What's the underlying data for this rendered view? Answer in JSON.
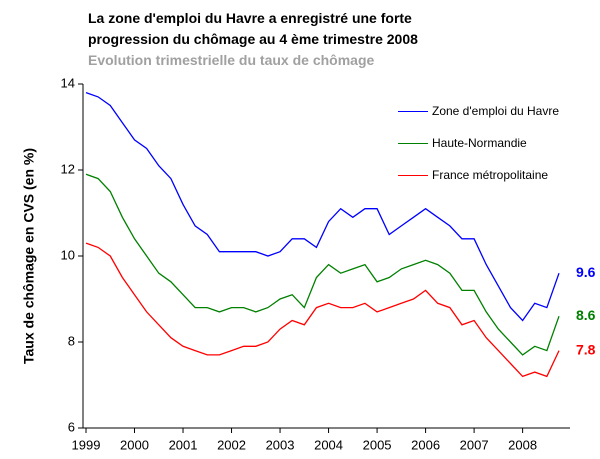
{
  "chart_data": {
    "type": "line",
    "title": "La zone d'emploi du Havre a enregistré une forte progression du chômage au 4 ème trimestre 2008",
    "subtitle": "Evolution trimestrielle du taux de chômage",
    "y_label": "Taux de chômage en CVS (en %)",
    "x": [
      1999,
      1999.25,
      1999.5,
      1999.75,
      2000,
      2000.25,
      2000.5,
      2000.75,
      2001,
      2001.25,
      2001.5,
      2001.75,
      2002,
      2002.25,
      2002.5,
      2002.75,
      2003,
      2003.25,
      2003.5,
      2003.75,
      2004,
      2004.25,
      2004.5,
      2004.75,
      2005,
      2005.25,
      2005.5,
      2005.75,
      2006,
      2006.25,
      2006.5,
      2006.75,
      2007,
      2007.25,
      2007.5,
      2007.75,
      2008,
      2008.25,
      2008.5,
      2008.75
    ],
    "series": [
      {
        "name": "Zone d'emploi du Havre",
        "color": "#0000ff",
        "values": [
          13.8,
          13.7,
          13.5,
          13.1,
          12.7,
          12.5,
          12.1,
          11.8,
          11.2,
          10.7,
          10.5,
          10.1,
          10.1,
          10.1,
          10.1,
          10.0,
          10.1,
          10.4,
          10.4,
          10.2,
          10.8,
          11.1,
          10.9,
          11.1,
          11.1,
          10.5,
          10.7,
          10.9,
          11.1,
          10.9,
          10.7,
          10.4,
          10.4,
          9.8,
          9.3,
          8.8,
          8.5,
          8.9,
          8.8,
          9.6
        ]
      },
      {
        "name": "Haute-Normandie",
        "color": "#008000",
        "values": [
          11.9,
          11.8,
          11.5,
          10.9,
          10.4,
          10.0,
          9.6,
          9.4,
          9.1,
          8.8,
          8.8,
          8.7,
          8.8,
          8.8,
          8.7,
          8.8,
          9.0,
          9.1,
          8.8,
          9.5,
          9.8,
          9.6,
          9.7,
          9.8,
          9.4,
          9.5,
          9.7,
          9.8,
          9.9,
          9.8,
          9.6,
          9.2,
          9.2,
          8.7,
          8.3,
          8.0,
          7.7,
          7.9,
          7.8,
          8.6
        ]
      },
      {
        "name": "France métropolitaine",
        "color": "#ff0000",
        "values": [
          10.3,
          10.2,
          10.0,
          9.5,
          9.1,
          8.7,
          8.4,
          8.1,
          7.9,
          7.8,
          7.7,
          7.7,
          7.8,
          7.9,
          7.9,
          8.0,
          8.3,
          8.5,
          8.4,
          8.8,
          8.9,
          8.8,
          8.8,
          8.9,
          8.7,
          8.8,
          8.9,
          9.0,
          9.2,
          8.9,
          8.8,
          8.4,
          8.5,
          8.1,
          7.8,
          7.5,
          7.2,
          7.3,
          7.2,
          7.8
        ]
      }
    ],
    "xlim": [
      1999,
      2008.75
    ],
    "xticks": [
      1999,
      2000,
      2001,
      2002,
      2003,
      2004,
      2005,
      2006,
      2007,
      2008
    ],
    "ylim": [
      6,
      14
    ],
    "yticks": [
      6,
      8,
      10,
      12,
      14
    ]
  }
}
